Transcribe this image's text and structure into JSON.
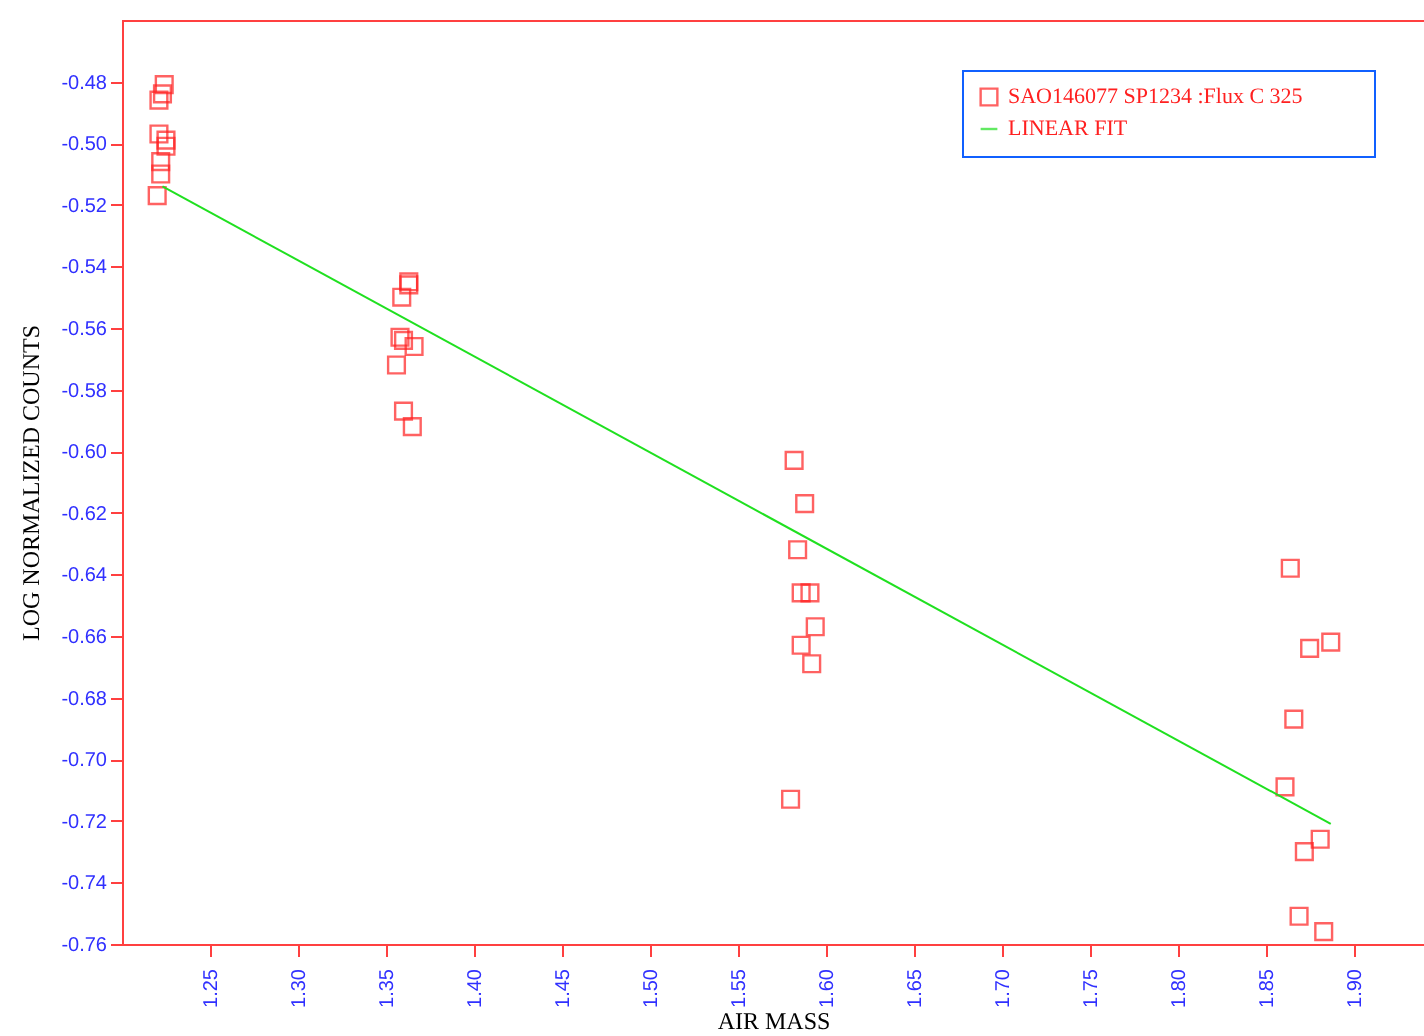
{
  "chart_data": {
    "type": "scatter",
    "xlabel": "AIR MASS",
    "ylabel": "LOG NORMALIZED COUNTS",
    "xlim": [
      1.2,
      1.94
    ],
    "ylim": [
      -0.76,
      -0.46
    ],
    "xticks": [
      {
        "value": 1.25,
        "label": "1.25"
      },
      {
        "value": 1.3,
        "label": "1.30"
      },
      {
        "value": 1.35,
        "label": "1.35"
      },
      {
        "value": 1.4,
        "label": "1.40"
      },
      {
        "value": 1.45,
        "label": "1.45"
      },
      {
        "value": 1.5,
        "label": "1.50"
      },
      {
        "value": 1.55,
        "label": "1.55"
      },
      {
        "value": 1.6,
        "label": "1.60"
      },
      {
        "value": 1.65,
        "label": "1.65"
      },
      {
        "value": 1.7,
        "label": "1.70"
      },
      {
        "value": 1.75,
        "label": "1.75"
      },
      {
        "value": 1.8,
        "label": "1.80"
      },
      {
        "value": 1.85,
        "label": "1.85"
      },
      {
        "value": 1.9,
        "label": "1.90"
      }
    ],
    "yticks": [
      -0.48,
      {
        "value": -0.5,
        "label": "-0.50"
      },
      -0.52,
      -0.54,
      -0.56,
      -0.58,
      {
        "value": -0.6,
        "label": "-0.60"
      },
      -0.62,
      -0.64,
      -0.66,
      -0.68,
      {
        "value": -0.7,
        "label": "-0.70"
      },
      -0.72,
      -0.74,
      -0.76
    ],
    "grid": false,
    "legend": "top right",
    "series": [
      {
        "name": "SAO146077 SP1234          :Flux C  325",
        "type": "scatter",
        "marker": "square",
        "color": "#ff2020",
        "x": [
          1.224,
          1.223,
          1.221,
          1.221,
          1.225,
          1.225,
          1.222,
          1.222,
          1.22,
          1.363,
          1.363,
          1.359,
          1.358,
          1.36,
          1.366,
          1.356,
          1.36,
          1.365,
          1.582,
          1.588,
          1.584,
          1.586,
          1.591,
          1.594,
          1.586,
          1.592,
          1.58,
          1.864,
          1.887,
          1.875,
          1.866,
          1.861,
          1.881,
          1.872,
          1.869,
          1.883
        ],
        "values": [
          -0.481,
          -0.484,
          -0.486,
          -0.497,
          -0.499,
          -0.501,
          -0.506,
          -0.51,
          -0.517,
          -0.545,
          -0.546,
          -0.55,
          -0.563,
          -0.564,
          -0.566,
          -0.572,
          -0.587,
          -0.592,
          -0.603,
          -0.617,
          -0.632,
          -0.646,
          -0.646,
          -0.657,
          -0.663,
          -0.669,
          -0.713,
          -0.638,
          -0.662,
          -0.664,
          -0.687,
          -0.709,
          -0.726,
          -0.73,
          -0.751,
          -0.756
        ]
      },
      {
        "name": "LINEAR FIT",
        "type": "line",
        "line_style": "solid",
        "color": "#20e020",
        "x": [
          1.223,
          1.887
        ],
        "values": [
          -0.514,
          -0.721
        ]
      }
    ]
  }
}
